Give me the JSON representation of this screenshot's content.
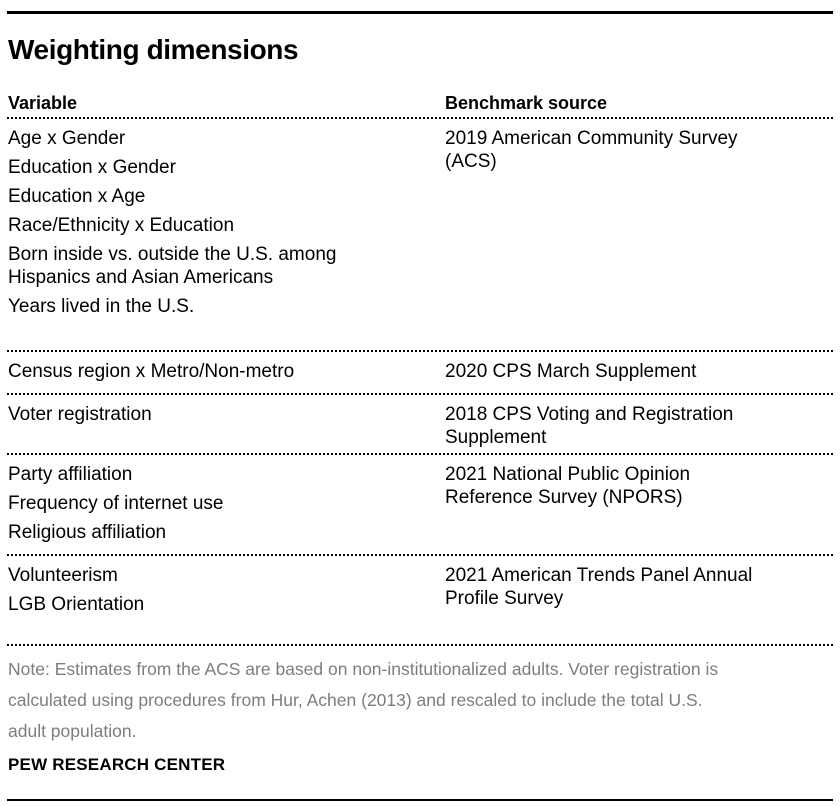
{
  "chart_data": {
    "type": "table",
    "title": "Weighting dimensions",
    "columns": [
      "Variable",
      "Benchmark source"
    ],
    "rows": [
      {
        "variables": [
          "Age x Gender",
          "Education x Gender",
          "Education x Age",
          "Race/Ethnicity x Education",
          "Born inside vs. outside the U.S. among Hispanics and Asian Americans",
          "Years lived in the U.S."
        ],
        "source": "2019 American Community Survey (ACS)"
      },
      {
        "variables": [
          "Census region x Metro/Non-metro"
        ],
        "source": "2020 CPS March Supplement"
      },
      {
        "variables": [
          "Voter registration"
        ],
        "source": "2018 CPS Voting and Registration Supplement"
      },
      {
        "variables": [
          "Party affiliation",
          "Frequency of internet use",
          "Religious affiliation"
        ],
        "source": "2021 National Public Opinion Reference Survey (NPORS)"
      },
      {
        "variables": [
          "Volunteerism",
          "LGB Orientation"
        ],
        "source": "2021 American Trends Panel Annual Profile Survey"
      }
    ],
    "note_lines": [
      "Note: Estimates from the ACS are based on non-institutionalized adults. Voter registration is",
      "calculated using procedures from Hur, Achen (2013) and rescaled to include the total U.S.",
      "adult population."
    ],
    "source_label": "PEW RESEARCH CENTER",
    "layout": "two-column table with dotted row separators, solid top and bottom rules"
  },
  "colors": {
    "text": "#000000",
    "note_text": "#7d7d7d",
    "rule": "#000000",
    "background": "#ffffff"
  }
}
